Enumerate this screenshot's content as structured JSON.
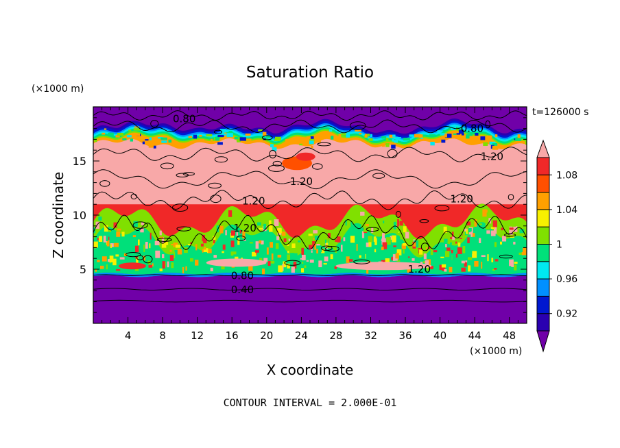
{
  "chart_data": {
    "type": "heatmap",
    "title": "Saturation Ratio",
    "xlabel": "X coordinate",
    "ylabel": "Z coordinate",
    "x_unit": "(×1000 m)",
    "y_unit": "(×1000 m)",
    "time_label": "t=126000 s",
    "footer": "CONTOUR INTERVAL = 2.000E-01",
    "xlim": [
      0,
      50
    ],
    "ylim": [
      0,
      20
    ],
    "x_ticks": [
      4,
      8,
      12,
      16,
      20,
      24,
      28,
      32,
      36,
      40,
      44,
      48
    ],
    "y_ticks": [
      5,
      10,
      15
    ],
    "colorbar": {
      "levels": [
        0.92,
        0.96,
        1,
        1.04,
        1.08
      ],
      "level_labels": [
        "0.92",
        "0.96",
        "1",
        "1.04",
        "1.08"
      ],
      "colors": [
        "#7000a8",
        "#2a00b0",
        "#0018d0",
        "#0090ff",
        "#00e8f0",
        "#00e07a",
        "#80e000",
        "#f8f000",
        "#ffa000",
        "#ff5000",
        "#f02828",
        "#f8a8a8"
      ]
    },
    "contour_labels": [
      {
        "text": "0.80",
        "x": 10.5,
        "z": 18.9
      },
      {
        "text": "0.80",
        "x": 43.7,
        "z": 18.0
      },
      {
        "text": "1.20",
        "x": 46.0,
        "z": 15.4
      },
      {
        "text": "1.20",
        "x": 24.0,
        "z": 13.1
      },
      {
        "text": "1.20",
        "x": 42.5,
        "z": 11.5
      },
      {
        "text": "1.20",
        "x": 18.5,
        "z": 11.3
      },
      {
        "text": "1.20",
        "x": 17.5,
        "z": 8.8
      },
      {
        "text": "1.20",
        "x": 37.6,
        "z": 5.0
      },
      {
        "text": "0.80",
        "x": 17.2,
        "z": 4.4
      },
      {
        "text": "0.40",
        "x": 17.2,
        "z": 3.1
      }
    ]
  }
}
